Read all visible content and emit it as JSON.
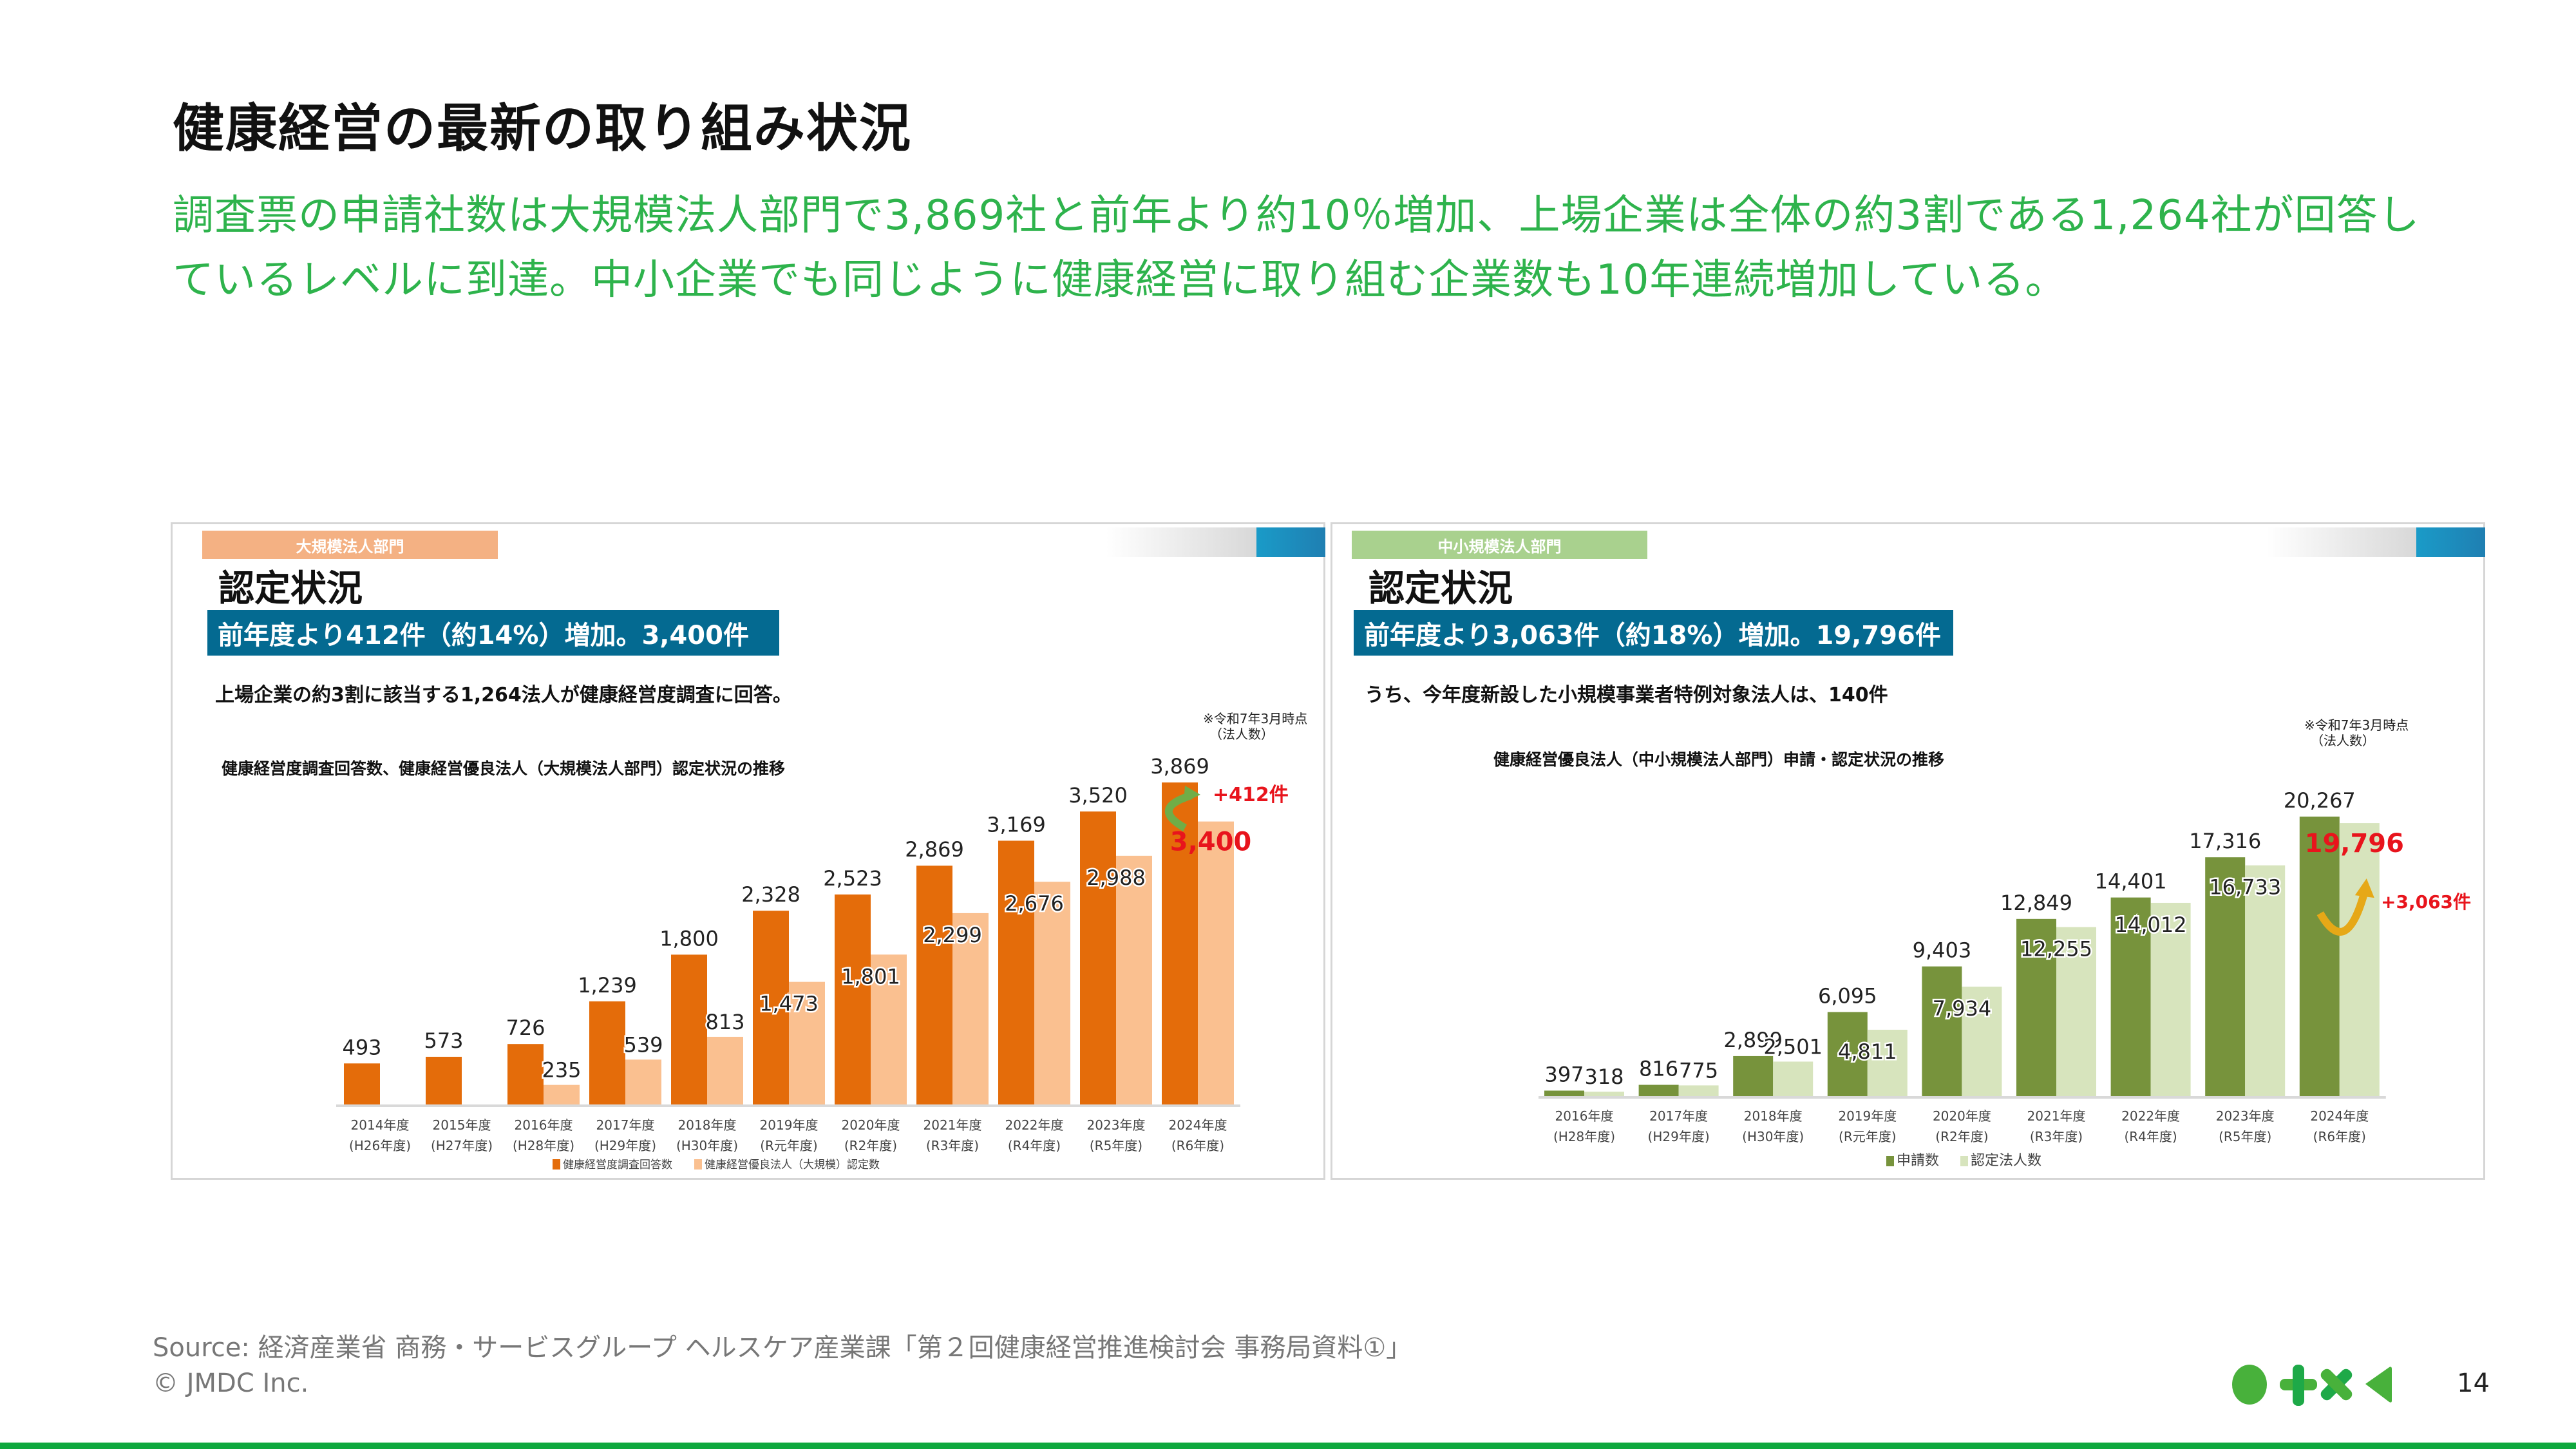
{
  "slide": {
    "title": "健康経営の最新の取り組み状況",
    "lead": "調査票の申請社数は大規模法人部門で3,869社と前年より約10％増加、上場企業は全体の約3割である1,264社が回答しているレベルに到達。中小企業でも同じように健康経営に取り組む企業数も10年連続増加している。",
    "source": "Source: 経済産業省 商務・サービスグループ ヘルスケア産業課「第２回健康経営推進検討会 事務局資料①」",
    "copyright": "© JMDC Inc.",
    "page_number": "14",
    "logo_icons": [
      "circle-icon",
      "plus-icon",
      "cross-icon",
      "triangle-left-icon"
    ],
    "colors": {
      "accent_green": "#2eb34c",
      "banner_blue": "#046a91",
      "highlight_red": "#e8141c"
    }
  },
  "panels": [
    {
      "tag": "大規模法人部門",
      "tag_color": "#f4b183",
      "heading": "認定状況",
      "banner": "前年度より412件（約14%）増加。3,400件",
      "subtext": "上場企業の約3割に該当する1,264法人が健康経営度調査に回答。",
      "chart_title": "健康経営度調査回答数、健康経営優良法人（大規模法人部門）認定状況の推移",
      "note": [
        "※令和7年3月時点",
        "（法人数）"
      ],
      "annotation": "+412件"
    },
    {
      "tag": "中小規模法人部門",
      "tag_color": "#a9d18e",
      "heading": "認定状況",
      "banner": "前年度より3,063件（約18%）増加。19,796件",
      "subtext": "うち、今年度新設した小規模事業者特例対象法人は、140件",
      "chart_title": "健康経営優良法人（中小規模法人部門）申請・認定状況の推移",
      "note": [
        "※令和7年3月時点",
        "（法人数）"
      ],
      "annotation": "+3,063件"
    }
  ],
  "chart_data": [
    {
      "type": "bar",
      "title": "健康経営度調査回答数、健康経営優良法人（大規模法人部門）認定状況の推移",
      "categories": [
        "2014年度",
        "2015年度",
        "2016年度",
        "2017年度",
        "2018年度",
        "2019年度",
        "2020年度",
        "2021年度",
        "2022年度",
        "2023年度",
        "2024年度"
      ],
      "categories_sub": [
        "(H26年度)",
        "(H27年度)",
        "(H28年度)",
        "(H29年度)",
        "(H30年度)",
        "(R元年度)",
        "(R2年度)",
        "(R3年度)",
        "(R4年度)",
        "(R5年度)",
        "(R6年度)"
      ],
      "series": [
        {
          "name": "健康経営度調査回答数",
          "color": "#e46c0a",
          "values": [
            493,
            573,
            726,
            1239,
            1800,
            2328,
            2523,
            2869,
            3169,
            3520,
            3869
          ],
          "labels": [
            "493",
            "573",
            "726",
            "1,239",
            "1,800",
            "2,328",
            "2,523",
            "2,869",
            "3,169",
            "3,520",
            "3,869"
          ]
        },
        {
          "name": "健康経営優良法人（大規模）認定数",
          "color": "#fac090",
          "values": [
            null,
            null,
            235,
            539,
            813,
            1473,
            1801,
            2299,
            2676,
            2988,
            3400
          ],
          "labels": [
            "",
            "",
            "235",
            "539",
            "813",
            "1,473",
            "1,801",
            "2,299",
            "2,676",
            "2,988",
            "3,400"
          ]
        }
      ],
      "ylim": [
        0,
        3869
      ],
      "legend": "bottom",
      "grid": false,
      "highlight": {
        "series": 1,
        "index": 10,
        "color": "#e8141c"
      },
      "arrow_color": "#70ad47"
    },
    {
      "type": "bar",
      "title": "健康経営優良法人（中小規模法人部門）申請・認定状況の推移",
      "categories": [
        "2016年度",
        "2017年度",
        "2018年度",
        "2019年度",
        "2020年度",
        "2021年度",
        "2022年度",
        "2023年度",
        "2024年度"
      ],
      "categories_sub": [
        "(H28年度)",
        "(H29年度)",
        "(H30年度)",
        "(R元年度)",
        "(R2年度)",
        "(R3年度)",
        "(R4年度)",
        "(R5年度)",
        "(R6年度)"
      ],
      "series": [
        {
          "name": "申請数",
          "color": "#77933c",
          "values": [
            397,
            816,
            2899,
            6095,
            9403,
            12849,
            14401,
            17316,
            20267
          ],
          "labels": [
            "397",
            "816",
            "2,899",
            "6,095",
            "9,403",
            "12,849",
            "14,401",
            "17,316",
            "20,267"
          ]
        },
        {
          "name": "認定法人数",
          "color": "#d7e4bd",
          "values": [
            318,
            775,
            2501,
            4811,
            7934,
            12255,
            14012,
            16733,
            19796
          ],
          "labels": [
            "318",
            "775",
            "2,501",
            "4,811",
            "7,934",
            "12,255",
            "14,012",
            "16,733",
            "19,796"
          ]
        }
      ],
      "ylim": [
        0,
        20267
      ],
      "legend": "bottom",
      "grid": false,
      "highlight": {
        "series": 1,
        "index": 8,
        "color": "#e8141c"
      },
      "arrow_color": "#e6a817"
    }
  ]
}
